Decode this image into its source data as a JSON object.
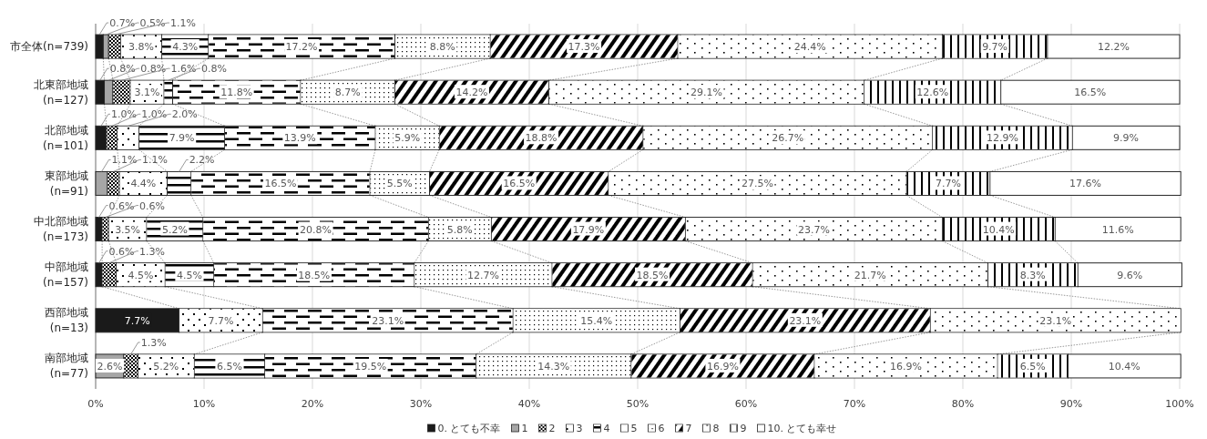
{
  "chart_data": {
    "type": "bar",
    "orientation": "horizontal",
    "stacked": true,
    "grid": "x",
    "legend": "bottom",
    "categories": [
      "市全体(n=739)",
      "北東部地域\n(n=127)",
      "北部地域\n(n=101)",
      "東部地域\n(n=91)",
      "中北部地域\n(n=173)",
      "中部地域\n(n=157)",
      "西部地域\n(n=13)",
      "南部地域\n(n=77)"
    ],
    "xlim": [
      0,
      100
    ],
    "xticks": [
      {
        "value": 0,
        "label": "0%"
      },
      {
        "value": 10,
        "label": "10%"
      },
      {
        "value": 20,
        "label": "20%"
      },
      {
        "value": 30,
        "label": "30%"
      },
      {
        "value": 40,
        "label": "40%"
      },
      {
        "value": 50,
        "label": "50%"
      },
      {
        "value": 60,
        "label": "60%"
      },
      {
        "value": 70,
        "label": "70%"
      },
      {
        "value": 80,
        "label": "80%"
      },
      {
        "value": 90,
        "label": "90%"
      },
      {
        "value": 100,
        "label": "100%"
      }
    ],
    "series": [
      {
        "name": "0. とても不幸",
        "color": "#1a1a1a",
        "values": [
          0.7,
          0.8,
          1.0,
          0,
          0.6,
          0.6,
          7.7,
          0
        ],
        "value_labels": [
          "0.7%",
          "0.8%",
          "1.0%",
          null,
          "0.6%",
          "0.6%",
          "7.7%",
          null
        ]
      },
      {
        "name": "1",
        "color": "#a6a6a6",
        "values": [
          0.5,
          0.8,
          0,
          1.1,
          0,
          0,
          0,
          2.6
        ],
        "value_labels": [
          "0.5%",
          "0.8%",
          null,
          "1.1%",
          null,
          null,
          null,
          "2.6%"
        ]
      },
      {
        "name": "2",
        "color": "#ffffff",
        "values": [
          1.1,
          1.6,
          1.0,
          1.1,
          0.6,
          1.3,
          0,
          1.3
        ],
        "value_labels": [
          "1.1%",
          "1.6%",
          "1.0%",
          "1.1%",
          "0.6%",
          "1.3%",
          null,
          "1.3%"
        ]
      },
      {
        "name": "3",
        "color": "#ffffff",
        "values": [
          3.8,
          3.1,
          2.0,
          4.4,
          3.5,
          4.5,
          7.7,
          5.2
        ],
        "value_labels": [
          "3.8%",
          "3.1%",
          "2.0%",
          "4.4%",
          "3.5%",
          "4.5%",
          "7.7%",
          "5.2%"
        ]
      },
      {
        "name": "4",
        "color": "#ffffff",
        "values": [
          4.3,
          0.8,
          7.9,
          2.2,
          5.2,
          4.5,
          0,
          6.5
        ],
        "value_labels": [
          "4.3%",
          "0.8%",
          "7.9%",
          "2.2%",
          "5.2%",
          "4.5%",
          null,
          "6.5%"
        ]
      },
      {
        "name": "5",
        "color": "#ffffff",
        "values": [
          17.2,
          11.8,
          13.9,
          16.5,
          20.8,
          18.5,
          23.1,
          19.5
        ],
        "value_labels": [
          "17.2%",
          "11.8%",
          "13.9%",
          "16.5%",
          "20.8%",
          "18.5%",
          "23.1%",
          "19.5%"
        ]
      },
      {
        "name": "6",
        "color": "#ffffff",
        "values": [
          8.8,
          8.7,
          5.9,
          5.5,
          5.8,
          12.7,
          15.4,
          14.3
        ],
        "value_labels": [
          "8.8%",
          "8.7%",
          "5.9%",
          "5.5%",
          "5.8%",
          "12.7%",
          "15.4%",
          "14.3%"
        ]
      },
      {
        "name": "7",
        "color": "#ffffff",
        "values": [
          17.3,
          14.2,
          18.8,
          16.5,
          17.9,
          18.5,
          23.1,
          16.9
        ],
        "value_labels": [
          "17.3%",
          "14.2%",
          "18.8%",
          "16.5%",
          "17.9%",
          "18.5%",
          "23.1%",
          "16.9%"
        ]
      },
      {
        "name": "8",
        "color": "#ffffff",
        "values": [
          24.4,
          29.1,
          26.7,
          27.5,
          23.7,
          21.7,
          23.1,
          16.9
        ],
        "value_labels": [
          "24.4%",
          "29.1%",
          "26.7%",
          "27.5%",
          "23.7%",
          "21.7%",
          "23.1%",
          "16.9%"
        ]
      },
      {
        "name": "9",
        "color": "#ffffff",
        "values": [
          9.7,
          12.6,
          12.9,
          7.7,
          10.4,
          8.3,
          0,
          6.5
        ],
        "value_labels": [
          "9.7%",
          "12.6%",
          "12.9%",
          "7.7%",
          "10.4%",
          "8.3%",
          null,
          "6.5%"
        ]
      },
      {
        "name": "10. とても幸せ",
        "color": "#ffffff",
        "values": [
          12.2,
          16.5,
          9.9,
          17.6,
          11.6,
          9.6,
          0,
          10.4
        ],
        "value_labels": [
          "12.2%",
          "16.5%",
          "9.9%",
          "17.6%",
          "11.6%",
          "9.6%",
          null,
          "10.4%"
        ]
      }
    ]
  }
}
